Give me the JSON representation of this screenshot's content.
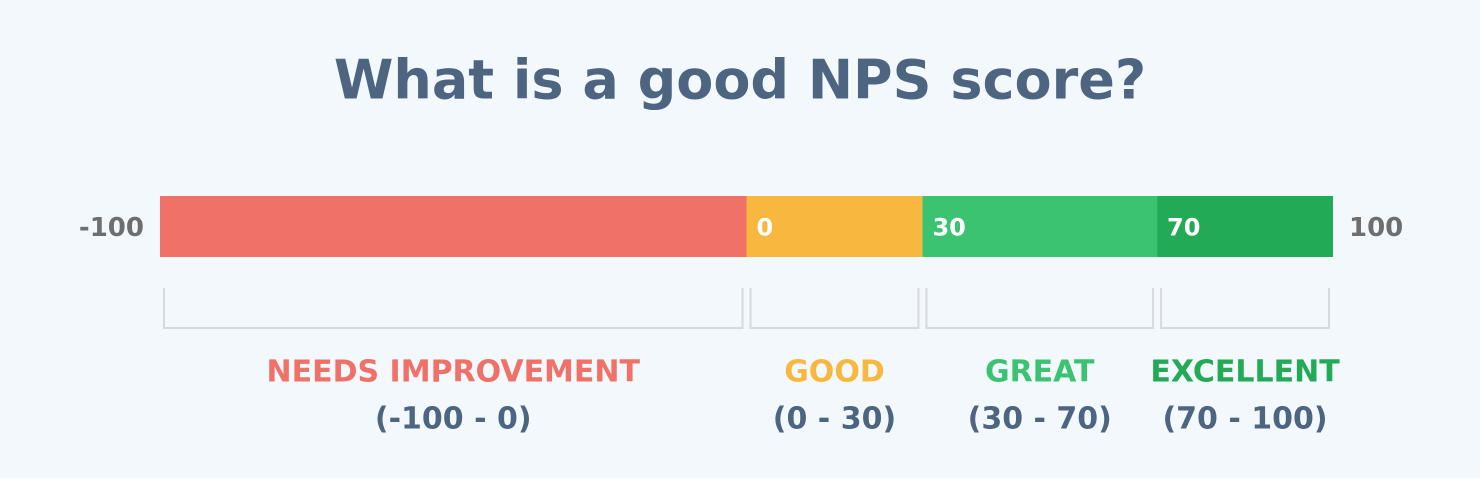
{
  "title": "What is a good NPS score?",
  "boundaries": [
    -100,
    0,
    30,
    70,
    100
  ],
  "segments": [
    {
      "name": "NEEDS IMPROVEMENT",
      "range": "(-100 - 0)",
      "color": "#f07167"
    },
    {
      "name": "GOOD",
      "range": "(0 - 30)",
      "color": "#f8b83f"
    },
    {
      "name": "GREAT",
      "range": "(30 - 70)",
      "color": "#3cc372"
    },
    {
      "name": "EXCELLENT",
      "range": "(70 - 100)",
      "color": "#22aa57"
    }
  ]
}
